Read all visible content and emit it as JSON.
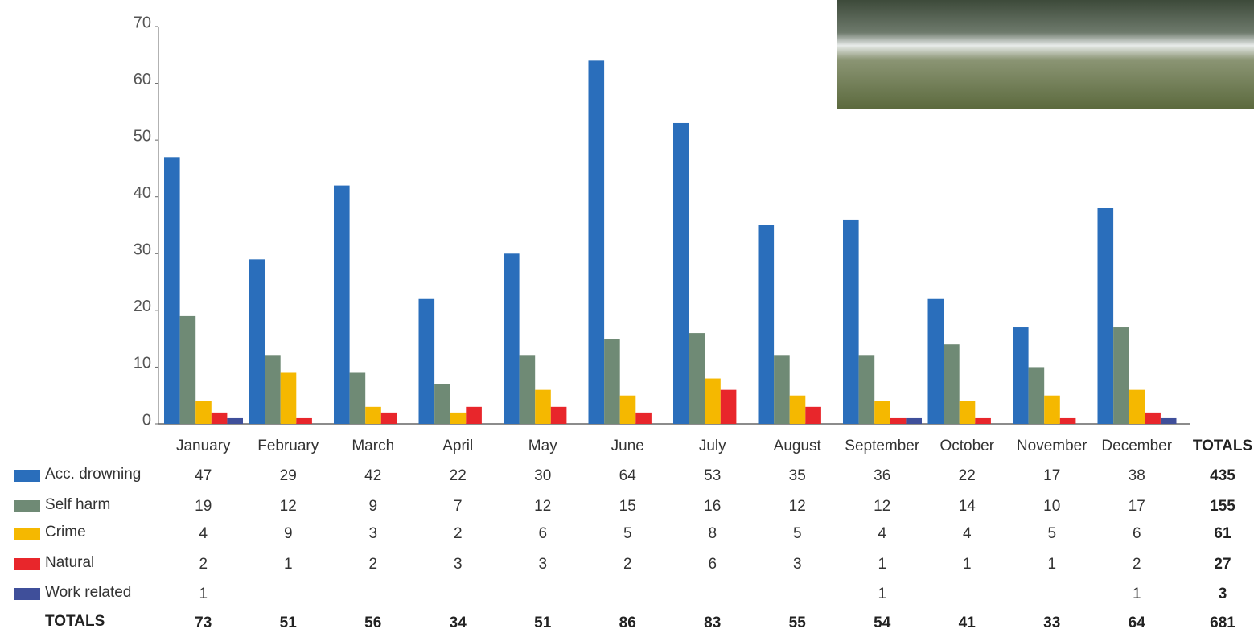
{
  "chart_data": {
    "type": "bar",
    "categories": [
      "January",
      "February",
      "March",
      "April",
      "May",
      "June",
      "July",
      "August",
      "September",
      "October",
      "November",
      "December"
    ],
    "series": [
      {
        "name": "Acc. drowning",
        "color": "#2a6ebb",
        "values": [
          47,
          29,
          42,
          22,
          30,
          64,
          53,
          35,
          36,
          22,
          17,
          38
        ]
      },
      {
        "name": "Self harm",
        "color": "#6f8a75",
        "values": [
          19,
          12,
          9,
          7,
          12,
          15,
          16,
          12,
          12,
          14,
          10,
          17
        ]
      },
      {
        "name": "Crime",
        "color": "#f5b800",
        "values": [
          4,
          9,
          3,
          2,
          6,
          5,
          8,
          5,
          4,
          4,
          5,
          6
        ]
      },
      {
        "name": "Natural",
        "color": "#e8262b",
        "values": [
          2,
          1,
          2,
          3,
          3,
          2,
          6,
          3,
          1,
          1,
          1,
          2
        ]
      },
      {
        "name": "Work related",
        "color": "#3f4f9a",
        "values": [
          1,
          null,
          null,
          null,
          null,
          null,
          null,
          null,
          1,
          null,
          null,
          1
        ]
      }
    ],
    "totals_label": "TOTALS",
    "series_totals": [
      435,
      155,
      61,
      27,
      3
    ],
    "category_totals": [
      73,
      51,
      56,
      34,
      51,
      86,
      83,
      55,
      54,
      41,
      33,
      64
    ],
    "grand_total": 681,
    "ylim": [
      0,
      70
    ],
    "yticks": [
      0,
      10,
      20,
      30,
      40,
      50,
      60,
      70
    ],
    "grid": false
  }
}
